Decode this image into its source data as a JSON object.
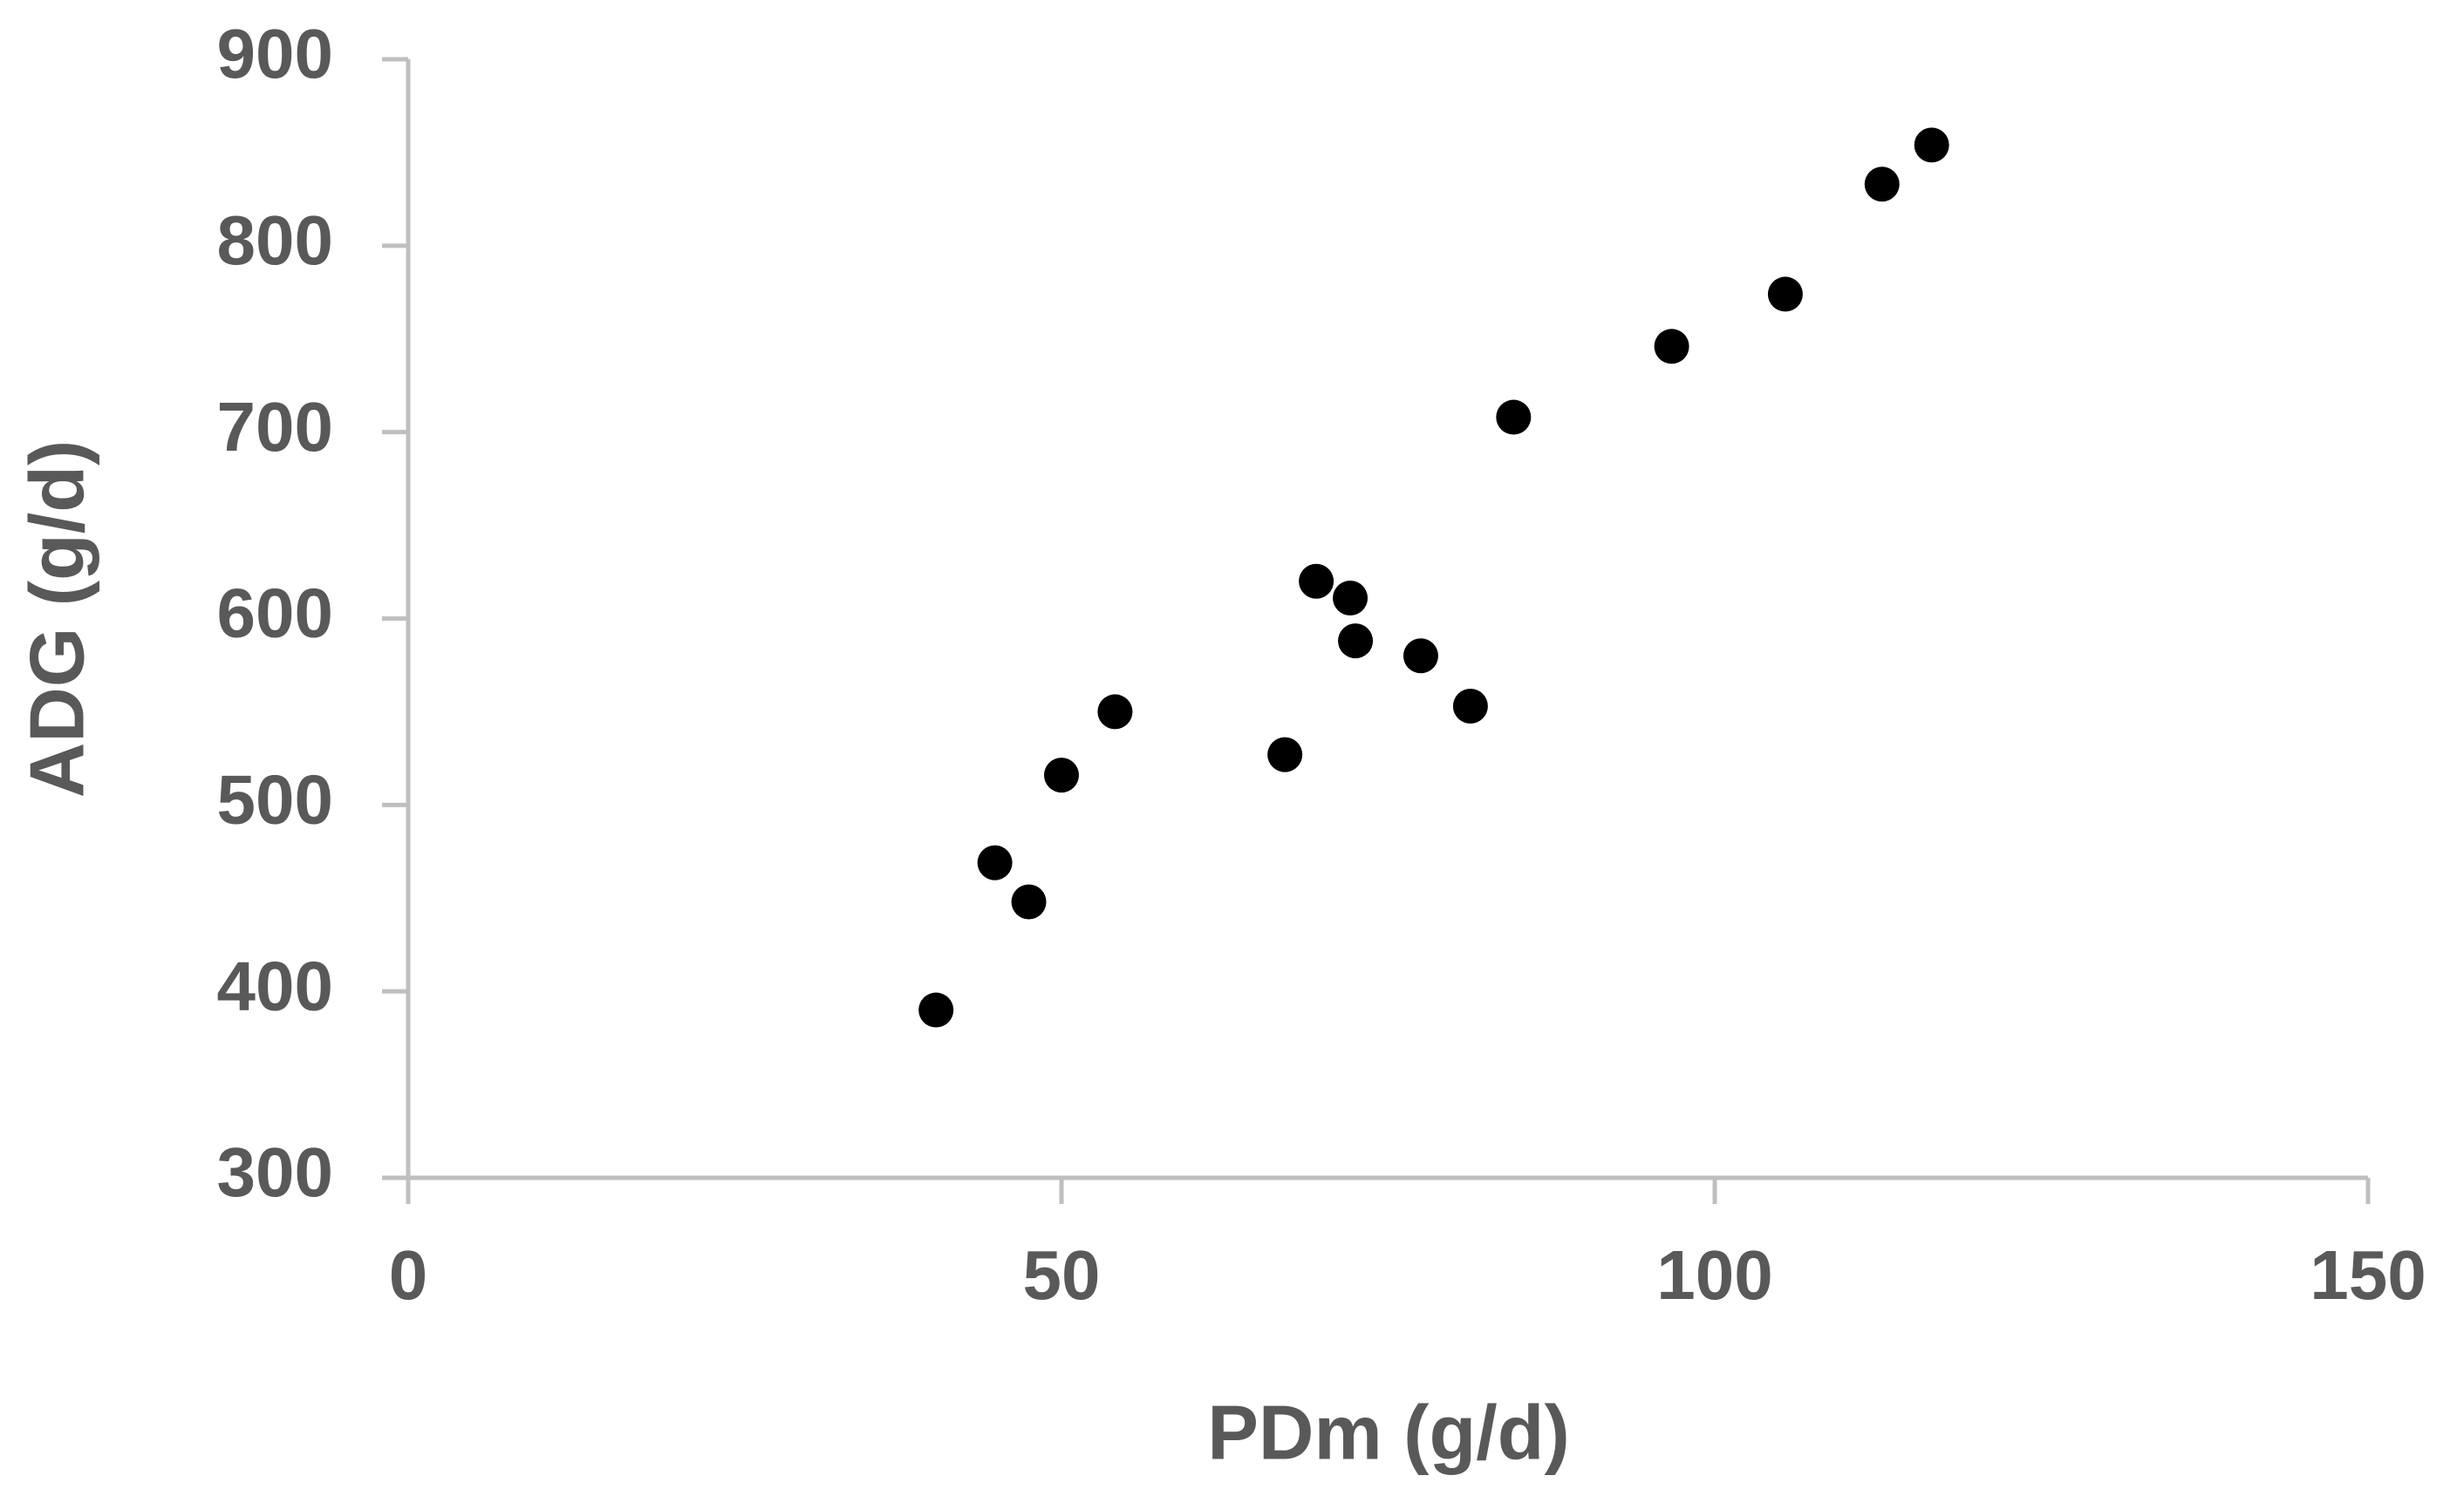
{
  "chart_data": {
    "type": "scatter",
    "xlabel": "PDm (g/d)",
    "ylabel": "ADG (g/d)",
    "x": [
      40.4,
      44.9,
      47.5,
      50.0,
      54.1,
      67.1,
      69.5,
      72.1,
      72.5,
      77.5,
      81.3,
      84.6,
      96.7,
      105.4,
      112.8,
      116.6
    ],
    "values": [
      390,
      469,
      448,
      516,
      550,
      527,
      620,
      611,
      588,
      580,
      553,
      708,
      746,
      774,
      833,
      854
    ],
    "color": "#000000",
    "axis_color": "#bfbfbf",
    "xlim": [
      0,
      150
    ],
    "xticks": [
      0,
      50,
      100,
      150
    ],
    "ylim": [
      300,
      900
    ],
    "yticks": [
      300,
      400,
      500,
      600,
      700,
      800,
      900
    ],
    "grid": false
  }
}
